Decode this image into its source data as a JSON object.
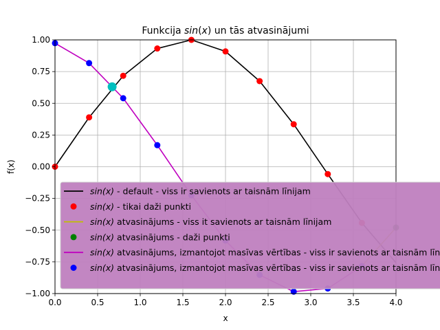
{
  "chart_data": {
    "type": "line",
    "title": "Funkcija sin(x) un tās atvasinājumi",
    "title_parts": {
      "prefix": "Funkcija ",
      "italic": "sin",
      "mid": "(",
      "italic2": "x",
      "suffix": ") un tās atvasinājumi"
    },
    "xlabel": "x",
    "ylabel": "f(x)",
    "xlim": [
      0,
      4
    ],
    "ylim": [
      -1,
      1
    ],
    "xticks": [
      0.0,
      0.5,
      1.0,
      1.5,
      2.0,
      2.5,
      3.0,
      3.5,
      4.0
    ],
    "xtick_labels": [
      "0.0",
      "0.5",
      "1.0",
      "1.5",
      "2.0",
      "2.5",
      "3.0",
      "3.5",
      "4.0"
    ],
    "yticks": [
      -1.0,
      -0.75,
      -0.5,
      -0.25,
      0.0,
      0.25,
      0.5,
      0.75,
      1.0
    ],
    "ytick_labels": [
      "−1.00",
      "−0.75",
      "−0.50",
      "−0.25",
      "0.00",
      "0.25",
      "0.50",
      "0.75",
      "1.00"
    ],
    "grid": true,
    "legend_placement": "lower-right",
    "legend_facecolor": "#bf7fbf",
    "series": [
      {
        "name": "sin(x) - default - viss ir savienots ar taisnām līnijam",
        "legend_italic": "sin(x)",
        "legend_rest": " - default - viss ir savienots ar taisnām līnijam",
        "style": "line",
        "color": "#000000",
        "x": [
          0.0,
          0.4,
          0.8,
          1.2,
          1.6,
          2.0,
          2.4,
          2.8,
          3.2,
          3.6,
          4.0
        ],
        "y": [
          0.0,
          0.389,
          0.717,
          0.932,
          1.0,
          0.909,
          0.675,
          0.335,
          -0.058,
          -0.443,
          -0.757
        ]
      },
      {
        "name": "sin(x) - tikai daži punkti",
        "legend_italic": "sin(x)",
        "legend_rest": " - tikai daži punkti",
        "style": "markers",
        "color": "#ff0000",
        "x": [
          0.0,
          0.4,
          0.8,
          1.2,
          1.6,
          2.0,
          2.4,
          2.8,
          3.2,
          3.6
        ],
        "y": [
          0.0,
          0.389,
          0.717,
          0.932,
          1.0,
          0.909,
          0.675,
          0.335,
          -0.058,
          -0.443
        ]
      },
      {
        "name": "sin(x) atvasinājums - viss it savienots ar taisnām līnijam",
        "legend_italic": "sin(x)",
        "legend_rest": " atvasinājums - viss it savienots ar taisnām līnijam",
        "style": "line",
        "color": "#bfbf00",
        "x": [
          3.6,
          4.0
        ],
        "y": [
          -0.783,
          -0.48
        ]
      },
      {
        "name": "sin(x) atvasinājums - daži punkti",
        "legend_italic": "sin(x)",
        "legend_rest": " atvasinājums - daži punkti",
        "style": "markers",
        "color": "#008000",
        "x": [
          4.0
        ],
        "y": [
          -0.48
        ]
      },
      {
        "name": "sin(x) atvasinājums, izmantojot masīvas vērtības - viss ir savienots ar taisnām līnijam",
        "legend_italic": "sin(x)",
        "legend_rest": " atvasinājums, izmantojot masīvas vērtības - viss ir savienots ar taisnām līnijam",
        "style": "line",
        "color": "#bf00bf",
        "x": [
          0.0,
          0.4,
          0.8,
          1.2,
          1.6,
          2.0,
          2.4,
          2.8,
          3.2,
          3.6
        ],
        "y": [
          0.974,
          0.817,
          0.54,
          0.17,
          -0.225,
          -0.582,
          -0.853,
          -0.985,
          -0.96,
          -0.783
        ]
      },
      {
        "name": "sin(x) atvasinājums, izmantojot masīvas vērtības - viss ir savienots ar taisnām līnijam",
        "legend_italic": "sin(x)",
        "legend_rest": " atvasinājums, izmantojot masīvas vērtības - viss ir savienots ar taisnām līnijam",
        "style": "markers",
        "color": "#0000ff",
        "x": [
          0.0,
          0.4,
          0.8,
          1.2,
          1.6,
          2.0,
          2.4,
          2.8,
          3.2,
          3.6
        ],
        "y": [
          0.974,
          0.817,
          0.54,
          0.17,
          -0.225,
          -0.582,
          -0.853,
          -0.985,
          -0.96,
          -0.783
        ]
      }
    ],
    "intersection": {
      "x": 0.67,
      "y": 0.63,
      "color": "#00bfbf"
    }
  }
}
